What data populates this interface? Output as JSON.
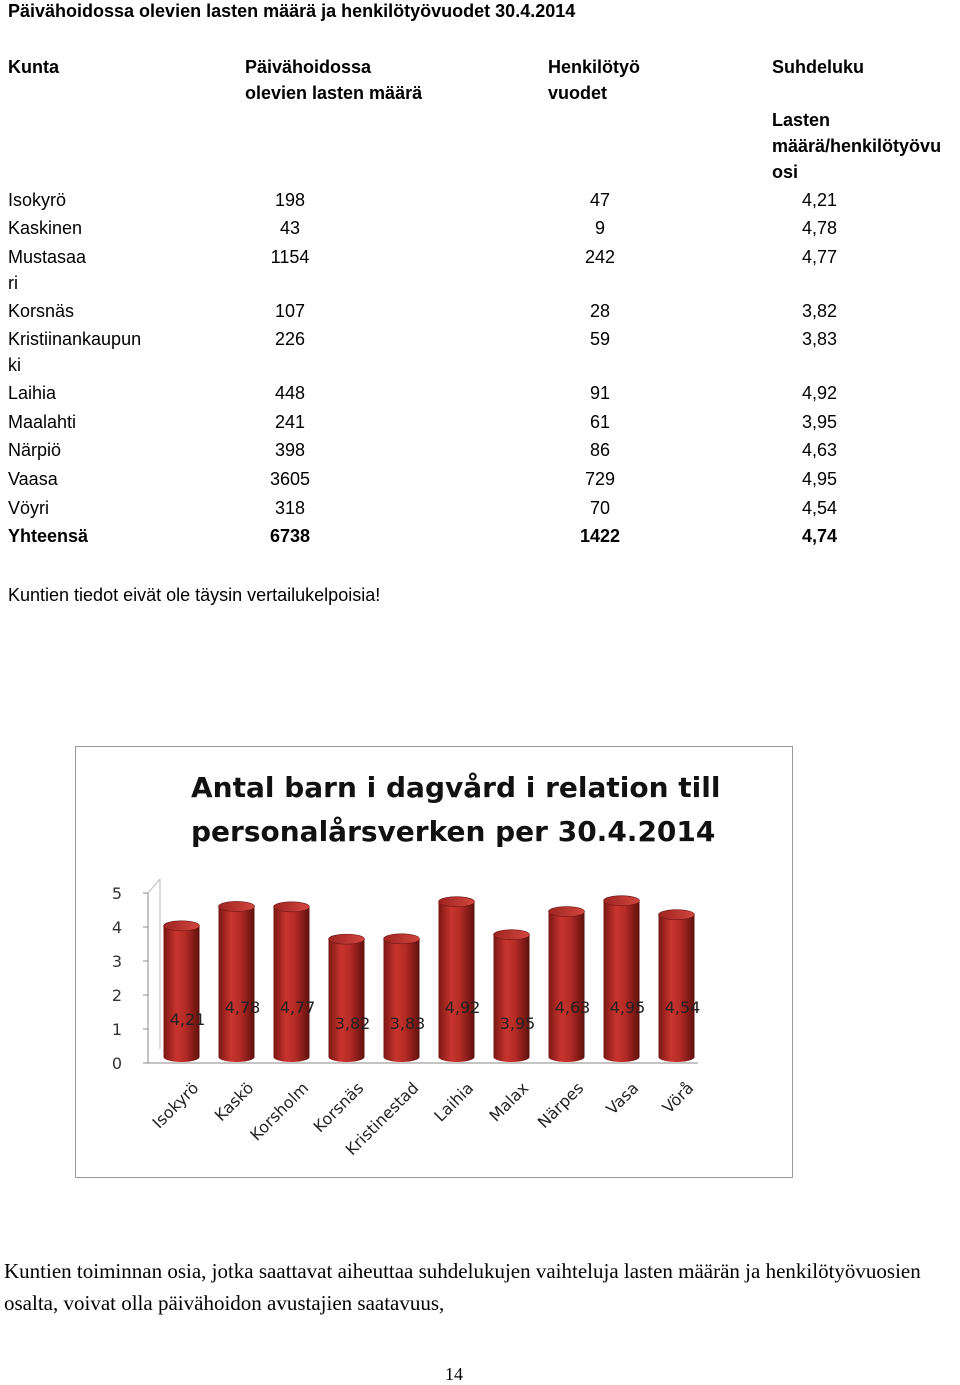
{
  "document": {
    "title": "Päivähoidossa olevien lasten määrä ja henkilötyövuodet 30.4.2014",
    "note": "Kuntien tiedot eivät ole täysin vertailukelpoisia!",
    "paragraph": "Kuntien toiminnan osia, jotka saattavat aiheuttaa suhdelukujen vaihteluja lasten määrän ja henkilötyövuosien osalta, voivat olla päivähoidon avustajien saatavuus,",
    "page_number": "14"
  },
  "table": {
    "headers": {
      "kunta": "Kunta",
      "lapset": [
        "Päivähoidossa",
        "olevien lasten määrä"
      ],
      "htv": [
        "Henkilötyö",
        "vuodet"
      ],
      "suhde": "Suhdeluku",
      "suhde_sub": [
        "Lasten",
        "määrä/henkilötyövu",
        "osi"
      ]
    },
    "rows": [
      {
        "name": [
          "Isokyrö"
        ],
        "children": "198",
        "staff": "47",
        "ratio": "4,21"
      },
      {
        "name": [
          "Kaskinen"
        ],
        "children": "43",
        "staff": "9",
        "ratio": "4,78"
      },
      {
        "name": [
          "Mustasaa",
          "ri"
        ],
        "children": "1154",
        "staff": "242",
        "ratio": "4,77"
      },
      {
        "name": [
          "Korsnäs"
        ],
        "children": "107",
        "staff": "28",
        "ratio": "3,82"
      },
      {
        "name": [
          "Kristiinankaupun",
          "ki"
        ],
        "children": "226",
        "staff": "59",
        "ratio": "3,83"
      },
      {
        "name": [
          "Laihia"
        ],
        "children": "448",
        "staff": "91",
        "ratio": "4,92"
      },
      {
        "name": [
          "Maalahti"
        ],
        "children": "241",
        "staff": "61",
        "ratio": "3,95"
      },
      {
        "name": [
          "Närpiö"
        ],
        "children": "398",
        "staff": "86",
        "ratio": "4,63"
      },
      {
        "name": [
          "Vaasa"
        ],
        "children": "3605",
        "staff": "729",
        "ratio": "4,95"
      },
      {
        "name": [
          "Vöyri"
        ],
        "children": "318",
        "staff": "70",
        "ratio": "4,54"
      }
    ],
    "total": {
      "name": "Yhteensä",
      "children": "6738",
      "staff": "1422",
      "ratio": "4,74"
    }
  },
  "chart_data": {
    "type": "bar",
    "title": [
      "Antal barn i dagvård i relation till",
      "personalårsverken per 30.4.2014"
    ],
    "categories": [
      "Isokyrö",
      "Kaskö",
      "Korsholm",
      "Korsnäs",
      "Kristinestad",
      "Laihia",
      "Malax",
      "Närpes",
      "Vasa",
      "Vörå"
    ],
    "values": [
      4.21,
      4.78,
      4.77,
      3.82,
      3.83,
      4.92,
      3.95,
      4.63,
      4.95,
      4.54
    ],
    "value_labels": [
      "4,21",
      "4,78",
      "4,77",
      "3,82",
      "3,83",
      "4,92",
      "3,95",
      "4,63",
      "4,95",
      "4,54"
    ],
    "yticks": [
      "0",
      "1",
      "2",
      "3",
      "4",
      "5"
    ],
    "ylim": [
      0,
      5
    ],
    "bar_color": "#c0302b",
    "grid": false,
    "legend": "none",
    "style": "3d-cylinder"
  }
}
